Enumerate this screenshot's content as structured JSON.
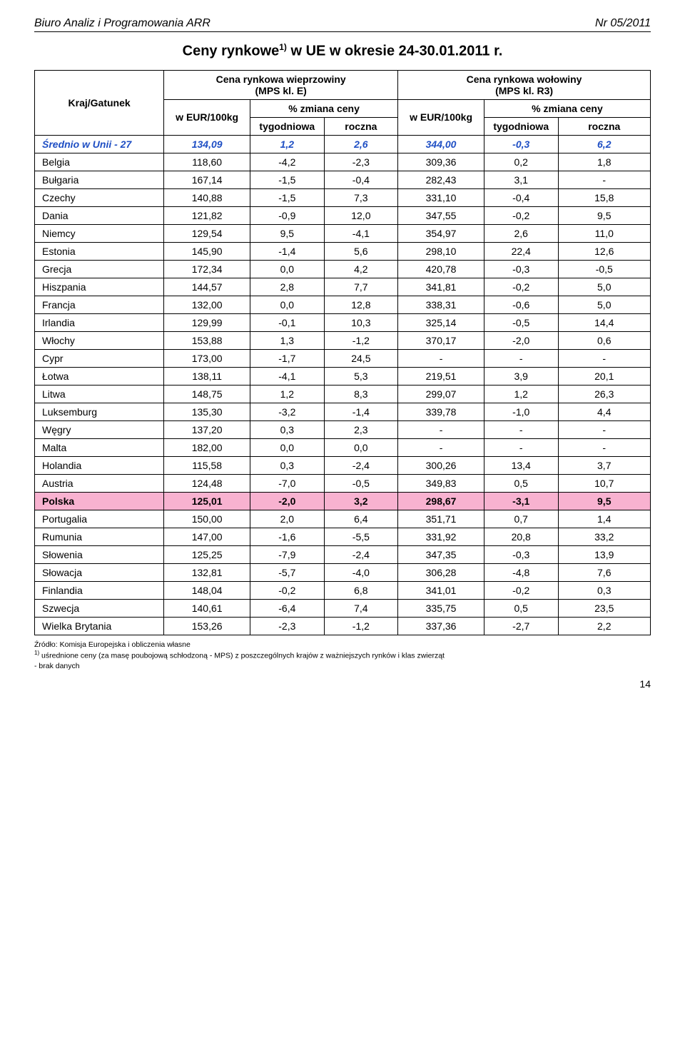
{
  "header": {
    "left": "Biuro Analiz i Programowania ARR",
    "right": "Nr 05/2011"
  },
  "title_parts": {
    "prefix": "Ceny rynkowe",
    "sup": "1)",
    "suffix": " w UE w okresie 24-30.01.2011 r."
  },
  "tableHeader": {
    "col0": "Kraj/Gatunek",
    "group1_title": "Cena rynkowa wieprzowiny\n(MPS kl. E)",
    "group2_title": "Cena rynkowa wołowiny\n(MPS kl. R3)",
    "sub_price": "w EUR/100kg",
    "sub_change": "% zmiana ceny",
    "sub_week": "tygodniowa",
    "sub_year": "roczna"
  },
  "rows": [
    {
      "name": "Średnio w Unii - 27",
      "p1": "134,09",
      "w1": "1,2",
      "y1": "2,6",
      "p2": "344,00",
      "w2": "-0,3",
      "y2": "6,2",
      "style": "avg"
    },
    {
      "name": "Belgia",
      "p1": "118,60",
      "w1": "-4,2",
      "y1": "-2,3",
      "p2": "309,36",
      "w2": "0,2",
      "y2": "1,8"
    },
    {
      "name": "Bułgaria",
      "p1": "167,14",
      "w1": "-1,5",
      "y1": "-0,4",
      "p2": "282,43",
      "w2": "3,1",
      "y2": "-"
    },
    {
      "name": "Czechy",
      "p1": "140,88",
      "w1": "-1,5",
      "y1": "7,3",
      "p2": "331,10",
      "w2": "-0,4",
      "y2": "15,8"
    },
    {
      "name": "Dania",
      "p1": "121,82",
      "w1": "-0,9",
      "y1": "12,0",
      "p2": "347,55",
      "w2": "-0,2",
      "y2": "9,5"
    },
    {
      "name": "Niemcy",
      "p1": "129,54",
      "w1": "9,5",
      "y1": "-4,1",
      "p2": "354,97",
      "w2": "2,6",
      "y2": "11,0"
    },
    {
      "name": "Estonia",
      "p1": "145,90",
      "w1": "-1,4",
      "y1": "5,6",
      "p2": "298,10",
      "w2": "22,4",
      "y2": "12,6"
    },
    {
      "name": "Grecja",
      "p1": "172,34",
      "w1": "0,0",
      "y1": "4,2",
      "p2": "420,78",
      "w2": "-0,3",
      "y2": "-0,5"
    },
    {
      "name": "Hiszpania",
      "p1": "144,57",
      "w1": "2,8",
      "y1": "7,7",
      "p2": "341,81",
      "w2": "-0,2",
      "y2": "5,0"
    },
    {
      "name": "Francja",
      "p1": "132,00",
      "w1": "0,0",
      "y1": "12,8",
      "p2": "338,31",
      "w2": "-0,6",
      "y2": "5,0"
    },
    {
      "name": "Irlandia",
      "p1": "129,99",
      "w1": "-0,1",
      "y1": "10,3",
      "p2": "325,14",
      "w2": "-0,5",
      "y2": "14,4"
    },
    {
      "name": "Włochy",
      "p1": "153,88",
      "w1": "1,3",
      "y1": "-1,2",
      "p2": "370,17",
      "w2": "-2,0",
      "y2": "0,6"
    },
    {
      "name": "Cypr",
      "p1": "173,00",
      "w1": "-1,7",
      "y1": "24,5",
      "p2": "-",
      "w2": "-",
      "y2": "-"
    },
    {
      "name": "Łotwa",
      "p1": "138,11",
      "w1": "-4,1",
      "y1": "5,3",
      "p2": "219,51",
      "w2": "3,9",
      "y2": "20,1"
    },
    {
      "name": "Litwa",
      "p1": "148,75",
      "w1": "1,2",
      "y1": "8,3",
      "p2": "299,07",
      "w2": "1,2",
      "y2": "26,3"
    },
    {
      "name": "Luksemburg",
      "p1": "135,30",
      "w1": "-3,2",
      "y1": "-1,4",
      "p2": "339,78",
      "w2": "-1,0",
      "y2": "4,4"
    },
    {
      "name": "Węgry",
      "p1": "137,20",
      "w1": "0,3",
      "y1": "2,3",
      "p2": "-",
      "w2": "-",
      "y2": "-"
    },
    {
      "name": "Malta",
      "p1": "182,00",
      "w1": "0,0",
      "y1": "0,0",
      "p2": "-",
      "w2": "-",
      "y2": "-"
    },
    {
      "name": "Holandia",
      "p1": "115,58",
      "w1": "0,3",
      "y1": "-2,4",
      "p2": "300,26",
      "w2": "13,4",
      "y2": "3,7"
    },
    {
      "name": "Austria",
      "p1": "124,48",
      "w1": "-7,0",
      "y1": "-0,5",
      "p2": "349,83",
      "w2": "0,5",
      "y2": "10,7"
    },
    {
      "name": "Polska",
      "p1": "125,01",
      "w1": "-2,0",
      "y1": "3,2",
      "p2": "298,67",
      "w2": "-3,1",
      "y2": "9,5",
      "style": "poland"
    },
    {
      "name": "Portugalia",
      "p1": "150,00",
      "w1": "2,0",
      "y1": "6,4",
      "p2": "351,71",
      "w2": "0,7",
      "y2": "1,4"
    },
    {
      "name": "Rumunia",
      "p1": "147,00",
      "w1": "-1,6",
      "y1": "-5,5",
      "p2": "331,92",
      "w2": "20,8",
      "y2": "33,2"
    },
    {
      "name": "Słowenia",
      "p1": "125,25",
      "w1": "-7,9",
      "y1": "-2,4",
      "p2": "347,35",
      "w2": "-0,3",
      "y2": "13,9"
    },
    {
      "name": "Słowacja",
      "p1": "132,81",
      "w1": "-5,7",
      "y1": "-4,0",
      "p2": "306,28",
      "w2": "-4,8",
      "y2": "7,6"
    },
    {
      "name": "Finlandia",
      "p1": "148,04",
      "w1": "-0,2",
      "y1": "6,8",
      "p2": "341,01",
      "w2": "-0,2",
      "y2": "0,3"
    },
    {
      "name": "Szwecja",
      "p1": "140,61",
      "w1": "-6,4",
      "y1": "7,4",
      "p2": "335,75",
      "w2": "0,5",
      "y2": "23,5"
    },
    {
      "name": "Wielka Brytania",
      "p1": "153,26",
      "w1": "-2,3",
      "y1": "-1,2",
      "p2": "337,36",
      "w2": "-2,7",
      "y2": "2,2"
    }
  ],
  "footnotes": {
    "source": "Źródło: Komisja Europejska i obliczenia własne",
    "note1_sup": "1)",
    "note1": " uśrednione ceny (za masę poubojową schłodzoną - MPS) z poszczególnych krajów z ważniejszych rynków i klas zwierząt",
    "nodata": "- brak danych"
  },
  "pageNumber": "14",
  "style": {
    "colWidths": [
      "21%",
      "14%",
      "12%",
      "12%",
      "14%",
      "12%",
      "15%"
    ],
    "avgRowColor": "#1f4fc4",
    "polandRowBg": "#f8b2d0"
  }
}
